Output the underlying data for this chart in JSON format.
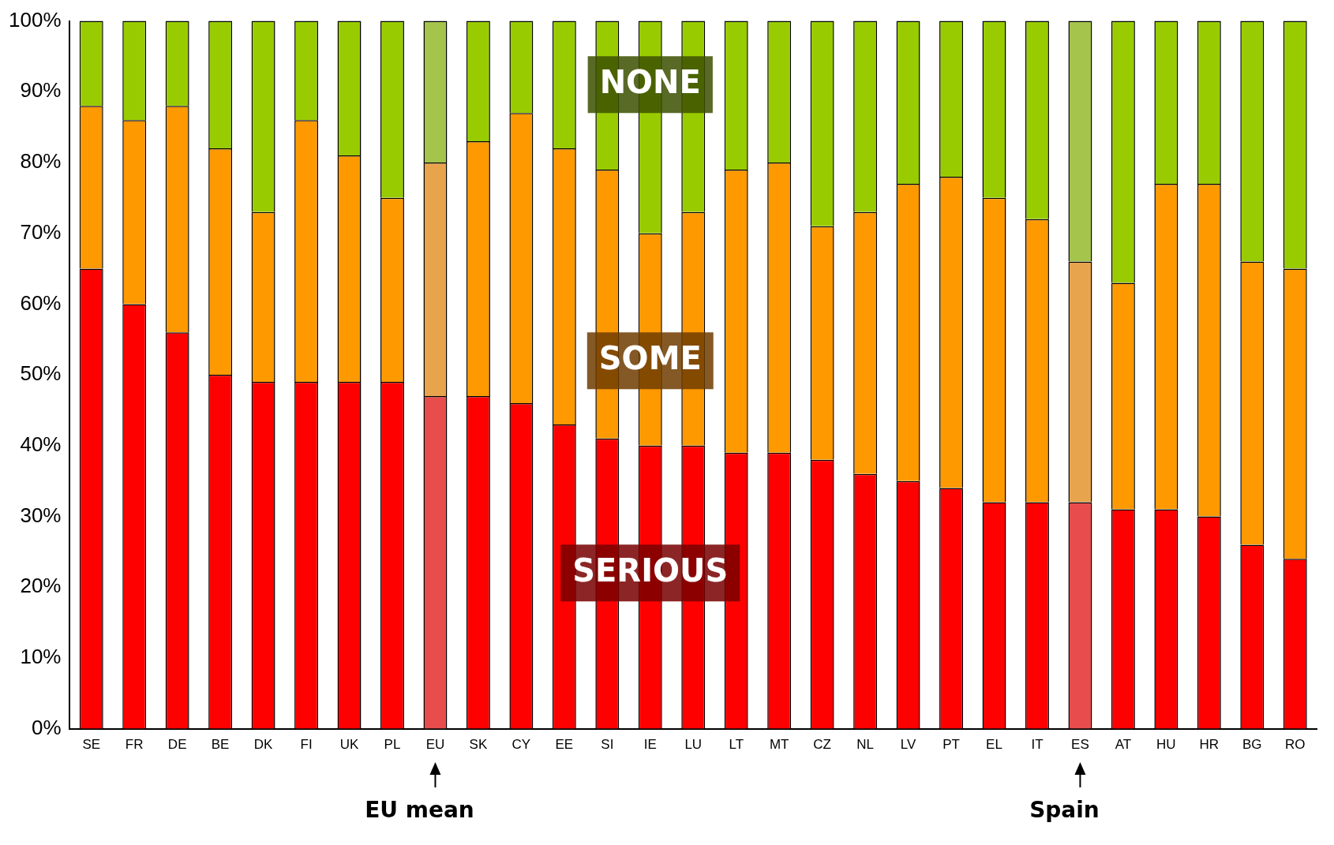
{
  "chart_data": {
    "type": "bar",
    "stacked": true,
    "legend": false,
    "grid": false,
    "categories": [
      "SE",
      "FR",
      "DE",
      "BE",
      "DK",
      "FI",
      "UK",
      "PL",
      "EU",
      "SK",
      "CY",
      "EE",
      "SI",
      "IE",
      "LU",
      "LT",
      "MT",
      "CZ",
      "NL",
      "LV",
      "PT",
      "EL",
      "IT",
      "ES",
      "AT",
      "HU",
      "HR",
      "BG",
      "RO"
    ],
    "series": [
      {
        "name": "SERIOUS",
        "color": "#ff0000",
        "colors": [
          "#ff0000",
          "#ff0000",
          "#ff0000",
          "#ff0000",
          "#ff0000",
          "#ff0000",
          "#ff0000",
          "#ff0000",
          "#e84c4c",
          "#ff0000",
          "#ff0000",
          "#ff0000",
          "#ff0000",
          "#ff0000",
          "#ff0000",
          "#ff0000",
          "#ff0000",
          "#ff0000",
          "#ff0000",
          "#ff0000",
          "#ff0000",
          "#ff0000",
          "#ff0000",
          "#e84c4c",
          "#ff0000",
          "#ff0000",
          "#ff0000",
          "#ff0000",
          "#ff0000"
        ],
        "values": [
          65,
          60,
          56,
          50,
          49,
          49,
          49,
          49,
          47,
          47,
          46,
          43,
          41,
          40,
          40,
          39,
          39,
          38,
          36,
          35,
          34,
          32,
          32,
          32,
          31,
          31,
          30,
          26,
          24
        ]
      },
      {
        "name": "SOME",
        "color": "#ff9900",
        "colors": [
          "#ff9900",
          "#ff9900",
          "#ff9900",
          "#ff9900",
          "#ff9900",
          "#ff9900",
          "#ff9900",
          "#ff9900",
          "#e8a44c",
          "#ff9900",
          "#ff9900",
          "#ff9900",
          "#ff9900",
          "#ff9900",
          "#ff9900",
          "#ff9900",
          "#ff9900",
          "#ff9900",
          "#ff9900",
          "#ff9900",
          "#ff9900",
          "#ff9900",
          "#ff9900",
          "#e8a44c",
          "#ff9900",
          "#ff9900",
          "#ff9900",
          "#ff9900",
          "#ff9900"
        ],
        "values": [
          23,
          26,
          32,
          32,
          24,
          37,
          32,
          26,
          33,
          36,
          41,
          39,
          38,
          30,
          33,
          40,
          41,
          33,
          37,
          42,
          44,
          43,
          40,
          34,
          32,
          46,
          47,
          40,
          41
        ]
      },
      {
        "name": "NONE",
        "color": "#99cc00",
        "colors": [
          "#99cc00",
          "#99cc00",
          "#99cc00",
          "#99cc00",
          "#99cc00",
          "#99cc00",
          "#99cc00",
          "#99cc00",
          "#a4c44c",
          "#99cc00",
          "#99cc00",
          "#99cc00",
          "#99cc00",
          "#99cc00",
          "#99cc00",
          "#99cc00",
          "#99cc00",
          "#99cc00",
          "#99cc00",
          "#99cc00",
          "#99cc00",
          "#99cc00",
          "#99cc00",
          "#a4c44c",
          "#99cc00",
          "#99cc00",
          "#99cc00",
          "#99cc00",
          "#99cc00"
        ],
        "values": [
          12,
          14,
          12,
          18,
          27,
          14,
          19,
          25,
          20,
          17,
          13,
          18,
          21,
          30,
          27,
          21,
          20,
          29,
          27,
          23,
          22,
          25,
          28,
          34,
          37,
          23,
          23,
          34,
          35
        ]
      }
    ],
    "ylim": [
      0,
      100
    ],
    "yticks": [
      {
        "value": 0,
        "label": "0%"
      },
      {
        "value": 10,
        "label": "10%"
      },
      {
        "value": 20,
        "label": "20%"
      },
      {
        "value": 30,
        "label": "30%"
      },
      {
        "value": 40,
        "label": "40%"
      },
      {
        "value": 50,
        "label": "50%"
      },
      {
        "value": 60,
        "label": "60%"
      },
      {
        "value": 70,
        "label": "70%"
      },
      {
        "value": 80,
        "label": "80%"
      },
      {
        "value": 90,
        "label": "90%"
      },
      {
        "value": 100,
        "label": "100%"
      }
    ],
    "annotations": [
      "EU mean",
      "Spain"
    ]
  }
}
